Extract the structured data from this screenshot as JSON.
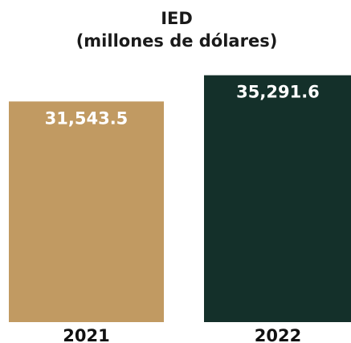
{
  "chart_data": {
    "type": "bar",
    "title": "IED",
    "subtitle": "(millones de dólares)",
    "categories": [
      "2021",
      "2022"
    ],
    "values": [
      31543.5,
      35291.6
    ],
    "value_labels": [
      "31,543.5",
      "35,291.6"
    ],
    "colors": [
      "#c19a62",
      "#14302a"
    ],
    "xlabel": "",
    "ylabel": "",
    "ylim": [
      0,
      38700
    ],
    "grid": false,
    "legend": "none"
  }
}
